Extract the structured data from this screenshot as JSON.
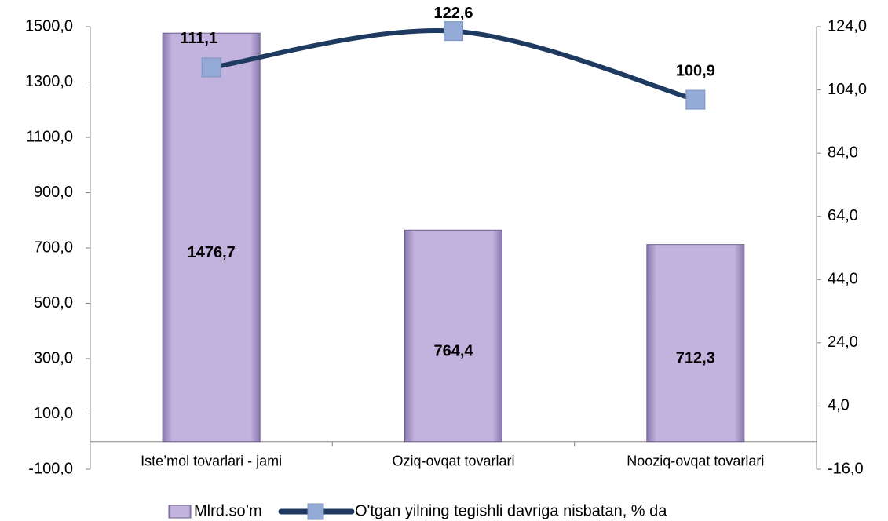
{
  "chart_data": {
    "type": "bar",
    "categories": [
      "Iste’mol tovarlari - jami",
      "Oziq-ovqat tovarlari",
      "Nooziq-ovqat tovarlari"
    ],
    "series": [
      {
        "name": "Mlrd.so’m",
        "type": "bar",
        "color": "#b9a8d6",
        "values": [
          1476.7,
          764.4,
          712.3
        ],
        "value_labels": [
          "1476,7",
          "764,4",
          "712,3"
        ]
      },
      {
        "name": "O'tgan yilning tegishli davriga nisbatan, % da",
        "type": "line",
        "axis": "y2",
        "color": "#1f3a60",
        "marker_color": "#94aad6",
        "values": [
          111.1,
          122.6,
          100.9
        ],
        "value_labels": [
          "111,1",
          "122,6",
          "100,9"
        ]
      }
    ],
    "ylim": [
      -100,
      1500
    ],
    "yticks": [
      {
        "value": -100,
        "label": "-100,0"
      },
      {
        "value": 100,
        "label": "100,0"
      },
      {
        "value": 300,
        "label": "300,0"
      },
      {
        "value": 500,
        "label": "500,0"
      },
      {
        "value": 700,
        "label": "700,0"
      },
      {
        "value": 900,
        "label": "900,0"
      },
      {
        "value": 1100,
        "label": "1100,0"
      },
      {
        "value": 1300,
        "label": "1300,0"
      },
      {
        "value": 1500,
        "label": "1500,0"
      }
    ],
    "y2lim": [
      -16,
      124
    ],
    "y2ticks": [
      {
        "value": -16,
        "label": "-16,0"
      },
      {
        "value": 4,
        "label": "4,0"
      },
      {
        "value": 24,
        "label": "24,0"
      },
      {
        "value": 44,
        "label": "44,0"
      },
      {
        "value": 64,
        "label": "64,0"
      },
      {
        "value": 84,
        "label": "84,0"
      },
      {
        "value": 104,
        "label": "104,0"
      },
      {
        "value": 124,
        "label": "124,0"
      }
    ],
    "legend": "bottom"
  }
}
